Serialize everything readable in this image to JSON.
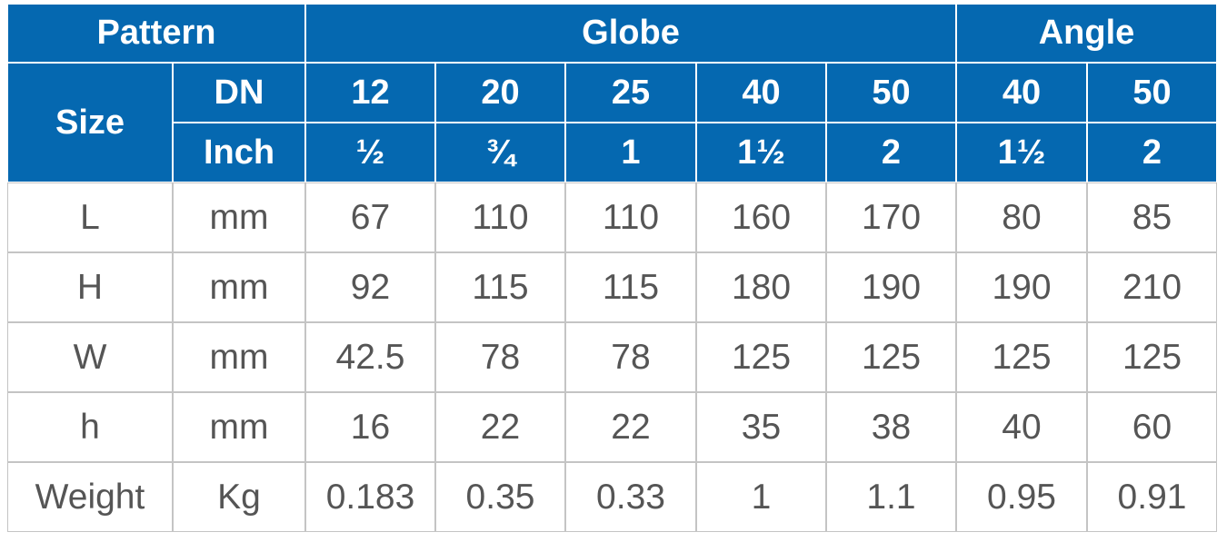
{
  "header": {
    "pattern": "Pattern",
    "globe": "Globe",
    "angle": "Angle",
    "size": "Size",
    "dn": "DN",
    "inch": "Inch",
    "dn_values": [
      "12",
      "20",
      "25",
      "40",
      "50",
      "40",
      "50"
    ],
    "inch_values": [
      "½",
      "¾",
      "1",
      "1½",
      "2",
      "1½",
      "2"
    ]
  },
  "rows": [
    [
      "L",
      "mm",
      "67",
      "110",
      "110",
      "160",
      "170",
      "80",
      "85"
    ],
    [
      "H",
      "mm",
      "92",
      "115",
      "115",
      "180",
      "190",
      "190",
      "210"
    ],
    [
      "W",
      "mm",
      "42.5",
      "78",
      "78",
      "125",
      "125",
      "125",
      "125"
    ],
    [
      "h",
      "mm",
      "16",
      "22",
      "22",
      "35",
      "38",
      "40",
      "60"
    ],
    [
      "Weight",
      "Kg",
      "0.183",
      "0.35",
      "0.33",
      "1",
      "1.1",
      "0.95",
      "0.91"
    ]
  ]
}
